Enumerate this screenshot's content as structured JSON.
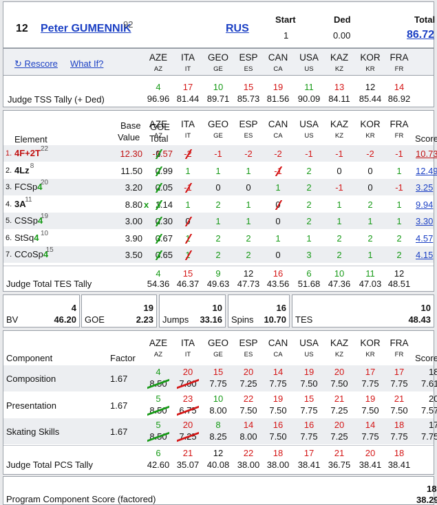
{
  "skater": {
    "rank": "12",
    "name": "Peter GUMENNIK",
    "sup": "92",
    "nation": "RUS",
    "start_label": "Start",
    "start": "1",
    "ded_label": "Ded",
    "ded": "0.00",
    "total_label": "Total",
    "total": "86.72"
  },
  "links": {
    "rescore": "↻ Rescore",
    "whatif": "What If?"
  },
  "judges": [
    {
      "code": "AZE",
      "flag": "AZ"
    },
    {
      "code": "ITA",
      "flag": "IT"
    },
    {
      "code": "GEO",
      "flag": "GE"
    },
    {
      "code": "ESP",
      "flag": "ES"
    },
    {
      "code": "CAN",
      "flag": "CA"
    },
    {
      "code": "USA",
      "flag": "US"
    },
    {
      "code": "KAZ",
      "flag": "KZ"
    },
    {
      "code": "KOR",
      "flag": "KR"
    },
    {
      "code": "FRA",
      "flag": "FR"
    }
  ],
  "tss": {
    "label": "Judge TSS Tally (+ Ded)",
    "ranks": [
      "4",
      "17",
      "10",
      "15",
      "19",
      "11",
      "13",
      "12",
      "14"
    ],
    "scores": [
      "96.96",
      "81.44",
      "89.71",
      "85.73",
      "81.56",
      "90.09",
      "84.11",
      "85.44",
      "86.92"
    ]
  },
  "elements_header": {
    "element": "Element",
    "base1": "Base",
    "base2": "Value",
    "goe1": "GOE",
    "goe2": "Total",
    "score": "Score"
  },
  "elements": [
    {
      "num": "1.",
      "name": "4F+2T",
      "sup": "22",
      "base": "12.30",
      "x": "",
      "goe": "-1.57",
      "judges": [
        "0",
        "-2",
        "-1",
        "-2",
        "-2",
        "-1",
        "-1",
        "-2",
        "-1"
      ],
      "score": "10.73"
    },
    {
      "num": "2.",
      "name": "4Lz",
      "sup": "8",
      "base": "11.50",
      "x": "",
      "goe": "0.99",
      "judges": [
        "2",
        "1",
        "1",
        "1",
        "-1",
        "2",
        "0",
        "0",
        "1"
      ],
      "score": "12.49"
    },
    {
      "num": "3.",
      "name": "FCSp4",
      "sup": "20",
      "base": "3.20",
      "x": "",
      "goe": "0.05",
      "judges": [
        "2",
        "-1",
        "0",
        "0",
        "1",
        "2",
        "-1",
        "0",
        "-1"
      ],
      "score": "3.25"
    },
    {
      "num": "4.",
      "name": "3A",
      "sup": "11",
      "base": "8.80",
      "x": "x",
      "goe": "1.14",
      "judges": [
        "3",
        "1",
        "2",
        "1",
        "0",
        "2",
        "1",
        "2",
        "1"
      ],
      "score": "9.94"
    },
    {
      "num": "5.",
      "name": "CSSp4",
      "sup": "19",
      "base": "3.00",
      "x": "",
      "goe": "0.30",
      "judges": [
        "2",
        "0",
        "1",
        "1",
        "0",
        "2",
        "1",
        "1",
        "1"
      ],
      "score": "3.30"
    },
    {
      "num": "6.",
      "name": "StSq4",
      "sup": "10",
      "base": "3.90",
      "x": "",
      "goe": "0.67",
      "judges": [
        "3",
        "1",
        "2",
        "2",
        "1",
        "1",
        "2",
        "2",
        "2"
      ],
      "score": "4.57"
    },
    {
      "num": "7.",
      "name": "CCoSp4",
      "sup": "15",
      "base": "3.50",
      "x": "",
      "goe": "0.65",
      "judges": [
        "3",
        "1",
        "2",
        "2",
        "0",
        "3",
        "2",
        "1",
        "2"
      ],
      "score": "4.15"
    }
  ],
  "tes_tally": {
    "label": "Judge Total TES Tally",
    "ranks": [
      "4",
      "15",
      "9",
      "12",
      "16",
      "6",
      "10",
      "11",
      "12"
    ],
    "scores": [
      "54.36",
      "46.37",
      "49.63",
      "47.73",
      "43.56",
      "51.68",
      "47.36",
      "47.03",
      "48.51"
    ]
  },
  "summary": [
    {
      "label": "BV",
      "rank": "4",
      "value": "46.20"
    },
    {
      "label": "GOE",
      "rank": "19",
      "value": "2.23"
    },
    {
      "label": "Jumps",
      "rank": "10",
      "value": "33.16"
    },
    {
      "label": "Spins",
      "rank": "16",
      "value": "10.70"
    },
    {
      "label": "TES",
      "rank": "10",
      "value": "48.43"
    }
  ],
  "pcs_header": {
    "component": "Component",
    "factor": "Factor",
    "score": "Score"
  },
  "components": [
    {
      "name": "Composition",
      "factor": "1.67",
      "ranks": [
        "4",
        "20",
        "15",
        "20",
        "14",
        "19",
        "20",
        "17",
        "17"
      ],
      "values": [
        "8.50",
        "7.00",
        "7.75",
        "7.25",
        "7.75",
        "7.50",
        "7.50",
        "7.75",
        "7.75"
      ],
      "score": "7.61",
      "score_rank": "18"
    },
    {
      "name": "Presentation",
      "factor": "1.67",
      "ranks": [
        "5",
        "23",
        "10",
        "22",
        "19",
        "15",
        "21",
        "19",
        "21"
      ],
      "values": [
        "8.50",
        "6.75",
        "8.00",
        "7.50",
        "7.50",
        "7.75",
        "7.25",
        "7.50",
        "7.50"
      ],
      "score": "7.57",
      "score_rank": "20"
    },
    {
      "name": "Skating Skills",
      "factor": "1.67",
      "ranks": [
        "5",
        "20",
        "8",
        "14",
        "16",
        "16",
        "20",
        "14",
        "18"
      ],
      "values": [
        "8.50",
        "7.25",
        "8.25",
        "8.00",
        "7.50",
        "7.75",
        "7.25",
        "7.75",
        "7.75"
      ],
      "score": "7.75",
      "score_rank": "17"
    }
  ],
  "pcs_tally": {
    "label": "Judge Total PCS Tally",
    "ranks": [
      "6",
      "21",
      "12",
      "22",
      "18",
      "17",
      "21",
      "20",
      "18"
    ],
    "scores": [
      "42.60",
      "35.07",
      "40.08",
      "38.00",
      "38.00",
      "38.41",
      "36.75",
      "38.41",
      "38.41"
    ]
  },
  "pcs_total": {
    "label": "Program Component Score (factored)",
    "rank": "18",
    "value": "38.29"
  },
  "colors": {
    "green": "#179a17",
    "red": "#d41616",
    "link": "#1a3fc4",
    "border": "#9aa0a8",
    "alt_row": "#eceef1"
  }
}
